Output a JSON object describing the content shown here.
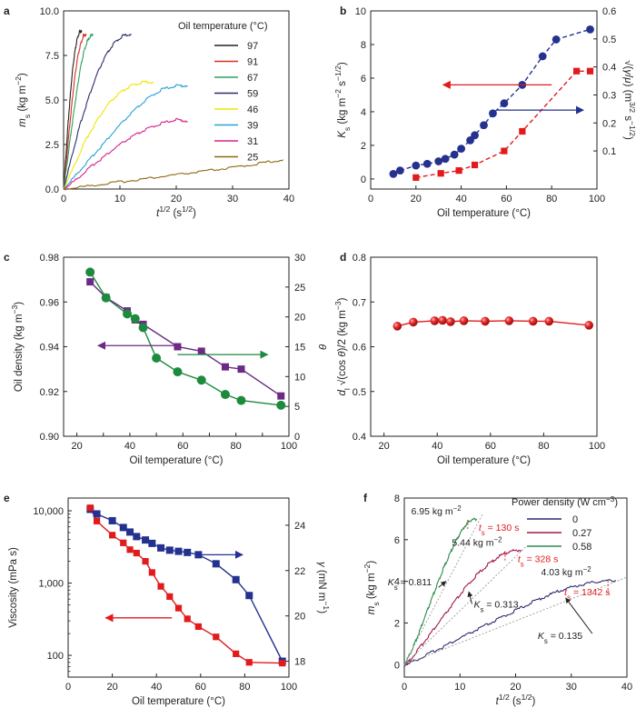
{
  "chart_data": [
    {
      "panel": "a",
      "type": "line",
      "xlabel": "t^1/2 (s^1/2)",
      "ylabel": "m_s (kg m^-2)",
      "xlim": [
        0,
        40
      ],
      "ylim": [
        0,
        10
      ],
      "xticks": [
        0,
        10,
        20,
        30,
        40
      ],
      "yticks": [
        0.0,
        2.5,
        5.0,
        7.5,
        10.0
      ],
      "legend_title": "Oil temperature (°C)",
      "legend_position": "top-right",
      "series": [
        {
          "name": "97",
          "color": "#222222",
          "x": [
            0,
            0.4,
            0.8,
            1.2,
            1.6,
            2.0,
            2.4,
            2.8,
            3.2
          ],
          "y": [
            0,
            1.8,
            3.7,
            5.3,
            6.7,
            7.7,
            8.4,
            8.8,
            8.9
          ]
        },
        {
          "name": "91",
          "color": "#d7301f",
          "x": [
            0,
            0.5,
            1.0,
            1.5,
            2.0,
            2.5,
            3.0,
            3.5,
            4.0
          ],
          "y": [
            0,
            1.6,
            3.3,
            4.9,
            6.3,
            7.4,
            8.1,
            8.6,
            8.7
          ]
        },
        {
          "name": "67",
          "color": "#2ca25f",
          "x": [
            0,
            0.6,
            1.2,
            1.8,
            2.4,
            3.0,
            3.6,
            4.2,
            4.8,
            5.2
          ],
          "y": [
            0,
            1.4,
            2.9,
            4.3,
            5.6,
            6.8,
            7.7,
            8.3,
            8.6,
            8.7
          ]
        },
        {
          "name": "59",
          "color": "#2b2d6e",
          "x": [
            0,
            1.5,
            3,
            4.5,
            6,
            7.5,
            9,
            10.5,
            12
          ],
          "y": [
            0,
            1.9,
            3.7,
            5.2,
            6.5,
            7.5,
            8.2,
            8.6,
            8.7
          ]
        },
        {
          "name": "46",
          "color": "#f2e600",
          "x": [
            0,
            2,
            4,
            6,
            8,
            10,
            12,
            14,
            16
          ],
          "y": [
            0,
            1.4,
            2.8,
            3.9,
            4.8,
            5.4,
            5.8,
            6.0,
            6.0
          ]
        },
        {
          "name": "39",
          "color": "#2aa0d8",
          "x": [
            0,
            2.5,
            5,
            7.5,
            10,
            12.5,
            15,
            17.5,
            20,
            22
          ],
          "y": [
            0,
            0.9,
            1.8,
            2.7,
            3.6,
            4.4,
            5.1,
            5.6,
            5.8,
            5.8
          ]
        },
        {
          "name": "31",
          "color": "#d6248b",
          "x": [
            0,
            2.5,
            5,
            7.5,
            10,
            12.5,
            15,
            17.5,
            20,
            22
          ],
          "y": [
            0,
            0.6,
            1.3,
            1.9,
            2.5,
            3.0,
            3.4,
            3.7,
            3.9,
            3.8
          ]
        },
        {
          "name": "25",
          "color": "#8b6b10",
          "x": [
            0,
            5,
            10,
            15,
            20,
            25,
            30,
            35,
            39
          ],
          "y": [
            0,
            0.2,
            0.4,
            0.6,
            0.8,
            1.0,
            1.2,
            1.45,
            1.65
          ]
        }
      ]
    },
    {
      "panel": "b",
      "type": "scatter",
      "xlabel": "Oil temperature (°C)",
      "ylabel": "K_s (kg m^-2 s^-1/2)",
      "ylabel_right": "√(γ/μ) (m^3/2 s^-1/2)",
      "xlim": [
        0,
        100
      ],
      "ylim": [
        -0.6,
        10
      ],
      "ylim_right": [
        -0.036,
        0.6
      ],
      "xticks": [
        0,
        20,
        40,
        60,
        80,
        100
      ],
      "yticks": [
        0,
        2,
        4,
        6,
        8,
        10
      ],
      "yticks_right": [
        0.1,
        0.2,
        0.3,
        0.4,
        0.5,
        0.6
      ],
      "series": [
        {
          "axis": "left",
          "marker": "circle",
          "color": "#24318f",
          "x": [
            10,
            13,
            20,
            25,
            30,
            33,
            37,
            40,
            44,
            46,
            50,
            54,
            59,
            67,
            76,
            82,
            97
          ],
          "y": [
            0.3,
            0.5,
            0.8,
            0.9,
            1.05,
            1.2,
            1.45,
            1.8,
            2.3,
            2.6,
            3.2,
            3.9,
            4.5,
            5.6,
            7.3,
            8.3,
            8.9
          ]
        },
        {
          "axis": "right",
          "marker": "square",
          "color": "#e31a1c",
          "x": [
            20,
            31,
            39,
            46,
            59,
            67,
            91,
            97
          ],
          "y": [
            0.005,
            0.02,
            0.03,
            0.05,
            0.1,
            0.17,
            0.385,
            0.385
          ]
        }
      ]
    },
    {
      "panel": "c",
      "type": "scatter",
      "xlabel": "Oil temperature (°C)",
      "ylabel": "Oil density (kg m^-3)",
      "ylabel_right": "θ",
      "xlim": [
        15,
        100
      ],
      "ylim": [
        0.9,
        0.98
      ],
      "ylim_right": [
        0,
        30
      ],
      "xticks": [
        20,
        30,
        40,
        50,
        60,
        70,
        80,
        90,
        100
      ],
      "yticks": [
        0.9,
        0.92,
        0.94,
        0.96,
        0.98
      ],
      "yticks_right": [
        0,
        5,
        10,
        15,
        20,
        25,
        30
      ],
      "series": [
        {
          "axis": "left",
          "marker": "square",
          "color": "#6a2a85",
          "x": [
            25,
            31,
            39,
            42,
            45,
            58,
            67,
            76,
            82,
            97
          ],
          "y": [
            0.969,
            0.962,
            0.956,
            0.952,
            0.95,
            0.94,
            0.938,
            0.931,
            0.93,
            0.918
          ]
        },
        {
          "axis": "right",
          "marker": "circle",
          "color": "#1e8a3e",
          "x": [
            25,
            31,
            39,
            42,
            45,
            50,
            58,
            67,
            76,
            82,
            97
          ],
          "y": [
            27.5,
            23.2,
            20.5,
            19.7,
            18.2,
            13.1,
            10.8,
            9.4,
            7.0,
            6.0,
            5.2
          ]
        }
      ]
    },
    {
      "panel": "d",
      "type": "scatter",
      "xlabel": "Oil temperature (°C)",
      "ylabel": "d_l √(cos θ)/2 (kg m^-3)",
      "xlim": [
        15,
        100
      ],
      "ylim": [
        0.4,
        0.8
      ],
      "xticks": [
        20,
        40,
        60,
        80,
        100
      ],
      "yticks": [
        0.4,
        0.5,
        0.6,
        0.7,
        0.8
      ],
      "series": [
        {
          "marker": "sphere",
          "color": "#e31a1c",
          "x": [
            25,
            31,
            39,
            42,
            45,
            50,
            58,
            67,
            76,
            82,
            97
          ],
          "y": [
            0.646,
            0.655,
            0.658,
            0.659,
            0.656,
            0.658,
            0.657,
            0.658,
            0.657,
            0.657,
            0.648
          ]
        }
      ]
    },
    {
      "panel": "e",
      "type": "scatter",
      "xlabel": "Oil temperature (°C)",
      "ylabel": "Viscosity (mPa s)",
      "ylabel_right": "γ (mN m^-1)",
      "xlim": [
        0,
        100
      ],
      "ylim": [
        50,
        15000
      ],
      "log_y": true,
      "ylim_right": [
        17.3,
        25.2
      ],
      "xticks": [
        0,
        20,
        40,
        60,
        80,
        100
      ],
      "yticks": [
        100,
        1000,
        10000
      ],
      "yticks_right": [
        18,
        20,
        22,
        24
      ],
      "ytick_labels": [
        "100",
        "1,000",
        "10,000"
      ],
      "series": [
        {
          "axis": "right",
          "marker": "square",
          "color": "#24318f",
          "x": [
            10,
            13,
            20,
            25,
            28,
            31,
            35,
            38,
            42,
            46,
            50,
            54,
            59,
            67,
            76,
            82,
            97
          ],
          "y": [
            24.7,
            24.5,
            24.2,
            23.9,
            23.7,
            23.5,
            23.35,
            23.2,
            23.0,
            22.9,
            22.85,
            22.8,
            22.7,
            22.3,
            21.6,
            20.9,
            18.0
          ]
        },
        {
          "axis": "left",
          "marker": "square",
          "color": "#e31a1c",
          "x": [
            10,
            13,
            20,
            25,
            28,
            31,
            35,
            38,
            42,
            46,
            50,
            54,
            59,
            67,
            76,
            82,
            97
          ],
          "y": [
            11000,
            7200,
            4600,
            3600,
            2900,
            2600,
            2000,
            1400,
            900,
            650,
            450,
            320,
            250,
            180,
            105,
            80,
            78
          ]
        }
      ]
    },
    {
      "panel": "f",
      "type": "line",
      "xlabel": "t^1/2 (s^1/2)",
      "ylabel": "m_s (kg m^-2)",
      "xlim": [
        0,
        40
      ],
      "ylim": [
        -0.6,
        8
      ],
      "xticks": [
        0,
        10,
        20,
        30,
        40
      ],
      "yticks": [
        0,
        2,
        4,
        6,
        8
      ],
      "legend_title": "Power density (W cm^-3)",
      "legend_position": "top-right",
      "series": [
        {
          "name": "0",
          "color": "#2b2d6e",
          "x": [
            0,
            2,
            5,
            8,
            11,
            14,
            17,
            20,
            23,
            26,
            29,
            32,
            35,
            38
          ],
          "y": [
            0,
            0.2,
            0.6,
            1.0,
            1.4,
            1.8,
            2.2,
            2.6,
            3.0,
            3.35,
            3.65,
            3.85,
            4.0,
            4.05
          ]
        },
        {
          "name": "0.27",
          "color": "#a3174f",
          "x": [
            0,
            1,
            3,
            5,
            7,
            9,
            11,
            13,
            15,
            17,
            19,
            21
          ],
          "y": [
            0,
            0.2,
            0.9,
            1.6,
            2.3,
            3.0,
            3.7,
            4.3,
            4.8,
            5.2,
            5.45,
            5.5
          ]
        },
        {
          "name": "0.58",
          "color": "#2c8c4a",
          "x": [
            0,
            1,
            2,
            3,
            4,
            5,
            6,
            7,
            8,
            9,
            10,
            11,
            12,
            13
          ],
          "y": [
            0,
            0.5,
            1.1,
            1.8,
            2.5,
            3.2,
            3.9,
            4.6,
            5.2,
            5.8,
            6.3,
            6.7,
            6.95,
            7.0
          ]
        }
      ],
      "annotations": [
        {
          "text": "6.95 kg m^-2",
          "x": 12,
          "y": 6.95
        },
        {
          "text": "t_s = 130 s",
          "x": 11.4,
          "y": 6.95,
          "color": "#e31a1c"
        },
        {
          "text": "K_s = 0.811",
          "x": 5.5,
          "y": 3.8
        },
        {
          "text": "5.44 kg m^-2",
          "x": 19,
          "y": 5.44
        },
        {
          "text": "t_s = 328 s",
          "x": 18.1,
          "y": 5.44,
          "color": "#e31a1c"
        },
        {
          "text": "K_s = 0.313",
          "x": 11.5,
          "y": 3.0
        },
        {
          "text": "4.03 kg m^-2",
          "x": 36,
          "y": 4.03
        },
        {
          "text": "t_s = 1342 s",
          "x": 36.6,
          "y": 4.03,
          "color": "#e31a1c"
        },
        {
          "text": "K_s = 0.135",
          "x": 23,
          "y": 2.8
        }
      ]
    }
  ]
}
